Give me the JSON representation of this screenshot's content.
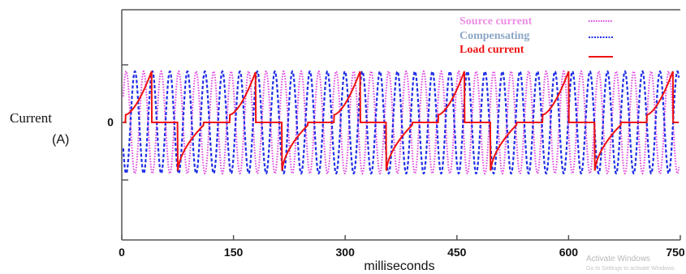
{
  "chart_data": {
    "type": "line",
    "xlabel": "milliseconds",
    "ylabel_line1": "Current",
    "ylabel_line2": "(A)",
    "xlim": [
      0,
      750
    ],
    "x_ticks": [
      0,
      150,
      300,
      450,
      600,
      750
    ],
    "y_tick_label": "0",
    "legend_position": "top-right",
    "series": [
      {
        "name": "Source current",
        "color": "#e040e0",
        "style": "dotted",
        "amplitude": 1,
        "period_ms": 23.5,
        "phase": 0
      },
      {
        "name": "Compensating",
        "color": "#1f2ee6",
        "style": "dashed",
        "amplitude": 1,
        "period_ms": 23.5,
        "phase": 0.5
      },
      {
        "name": "Load current",
        "color": "#ee1111",
        "style": "solid",
        "amplitude": 1,
        "period_ms": 140,
        "pulse_duration_ms": 35
      }
    ]
  },
  "watermark": {
    "line1": "Activate Windows",
    "line2": "Go to Settings to activate Windows."
  }
}
